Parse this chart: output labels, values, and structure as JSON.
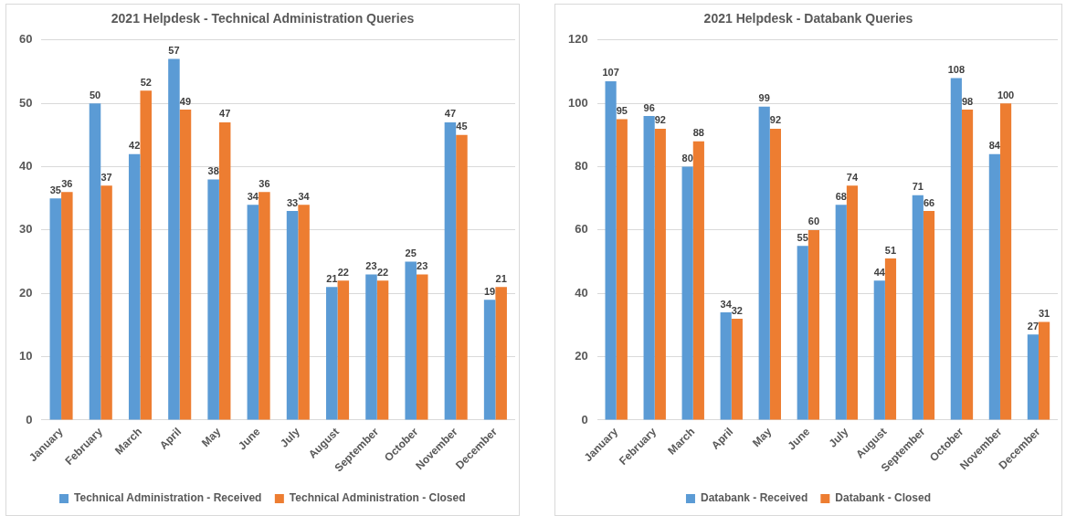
{
  "chart_data": [
    {
      "type": "bar",
      "title": "2021 Helpdesk - Technical Administration Queries",
      "categories": [
        "January",
        "February",
        "March",
        "April",
        "May",
        "June",
        "July",
        "August",
        "September",
        "October",
        "November",
        "December"
      ],
      "series": [
        {
          "name": "Technical Administration - Received",
          "color": "#5b9bd5",
          "values": [
            35,
            50,
            42,
            57,
            38,
            34,
            33,
            21,
            23,
            25,
            47,
            19
          ]
        },
        {
          "name": "Technical Administration - Closed",
          "color": "#ed7d31",
          "values": [
            36,
            37,
            52,
            49,
            47,
            36,
            34,
            22,
            22,
            23,
            45,
            21
          ]
        }
      ],
      "ylim": [
        0,
        60
      ],
      "yticks": [
        0,
        10,
        20,
        30,
        40,
        50,
        60
      ],
      "grid": "y",
      "legend": "bottom",
      "data_labels": true
    },
    {
      "type": "bar",
      "title": "2021 Helpdesk - Databank Queries",
      "categories": [
        "January",
        "February",
        "March",
        "April",
        "May",
        "June",
        "July",
        "August",
        "September",
        "October",
        "November",
        "December"
      ],
      "series": [
        {
          "name": "Databank - Received",
          "color": "#5b9bd5",
          "values": [
            107,
            96,
            80,
            34,
            99,
            55,
            68,
            44,
            71,
            108,
            84,
            27
          ]
        },
        {
          "name": "Databank - Closed",
          "color": "#ed7d31",
          "values": [
            95,
            92,
            88,
            32,
            92,
            60,
            74,
            51,
            66,
            98,
            100,
            31
          ]
        }
      ],
      "ylim": [
        0,
        120
      ],
      "yticks": [
        0,
        20,
        40,
        60,
        80,
        100,
        120
      ],
      "grid": "y",
      "legend": "bottom",
      "data_labels": true
    }
  ]
}
